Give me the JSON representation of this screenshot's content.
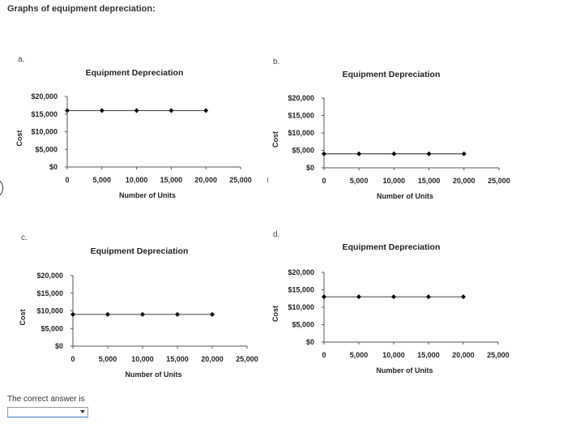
{
  "page": {
    "heading": "Graphs of equipment depreciation:",
    "answer_prompt": "The correct answer is",
    "answer_value": ""
  },
  "panels": [
    {
      "letter": "a."
    },
    {
      "letter": "b."
    },
    {
      "letter": "c."
    },
    {
      "letter": "d."
    }
  ],
  "chart_data": [
    {
      "type": "line",
      "title": "Equipment Depreciation",
      "xlabel": "Number of Units",
      "ylabel": "Cost",
      "x": [
        0,
        5000,
        10000,
        15000,
        20000
      ],
      "y": [
        16000,
        16000,
        16000,
        16000,
        16000
      ],
      "xlim": [
        0,
        25000
      ],
      "ylim": [
        0,
        20000
      ],
      "xticks": [
        0,
        5000,
        10000,
        15000,
        20000,
        25000
      ],
      "xtick_labels": [
        "0",
        "5,000",
        "10,000",
        "15,000",
        "20,000",
        "25,000"
      ],
      "yticks": [
        0,
        5000,
        10000,
        15000,
        20000
      ],
      "ytick_labels": [
        "$0",
        "$5,000",
        "$10,000",
        "$15,000",
        "$20,000"
      ],
      "marker_color": "#000000"
    },
    {
      "type": "line",
      "title": "Equipment Depreciation",
      "xlabel": "Number of Units",
      "ylabel": "Cost",
      "x": [
        0,
        5000,
        10000,
        15000,
        20000
      ],
      "y": [
        4000,
        4000,
        4000,
        4000,
        4000
      ],
      "xlim": [
        0,
        25000
      ],
      "ylim": [
        0,
        20000
      ],
      "xticks": [
        0,
        5000,
        10000,
        15000,
        20000,
        25000
      ],
      "xtick_labels": [
        "0",
        "5,000",
        "10,000",
        "15,000",
        "20,000",
        "25,000"
      ],
      "yticks": [
        0,
        5000,
        10000,
        15000,
        20000
      ],
      "ytick_labels": [
        "$0",
        "$5,000",
        "$10,000",
        "$15,000",
        "$20,000"
      ],
      "marker_color": "#000000"
    },
    {
      "type": "line",
      "title": "Equipment Depreciation",
      "xlabel": "Number of Units",
      "ylabel": "Cost",
      "x": [
        0,
        5000,
        10000,
        15000,
        20000
      ],
      "y": [
        9000,
        9000,
        9000,
        9000,
        9000
      ],
      "xlim": [
        0,
        25000
      ],
      "ylim": [
        0,
        20000
      ],
      "xticks": [
        0,
        5000,
        10000,
        15000,
        20000,
        25000
      ],
      "xtick_labels": [
        "0",
        "5,000",
        "10,000",
        "15,000",
        "20,000",
        "25,000"
      ],
      "yticks": [
        0,
        5000,
        10000,
        15000,
        20000
      ],
      "ytick_labels": [
        "$0",
        "$5,000",
        "$10,000",
        "$15,000",
        "$20,000"
      ],
      "marker_color": "#000000"
    },
    {
      "type": "line",
      "title": "Equipment Depreciation",
      "xlabel": "Number of Units",
      "ylabel": "Cost",
      "x": [
        0,
        5000,
        10000,
        15000,
        20000
      ],
      "y": [
        13000,
        13000,
        13000,
        13000,
        13000
      ],
      "xlim": [
        0,
        25000
      ],
      "ylim": [
        0,
        20000
      ],
      "xticks": [
        0,
        5000,
        10000,
        15000,
        20000,
        25000
      ],
      "xtick_labels": [
        "0",
        "5,000",
        "10,000",
        "15,000",
        "20,000",
        "25,000"
      ],
      "yticks": [
        0,
        5000,
        10000,
        15000,
        20000
      ],
      "ytick_labels": [
        "$0",
        "$5,000",
        "$10,000",
        "$15,000",
        "$20,000"
      ],
      "marker_color": "#000000"
    }
  ]
}
